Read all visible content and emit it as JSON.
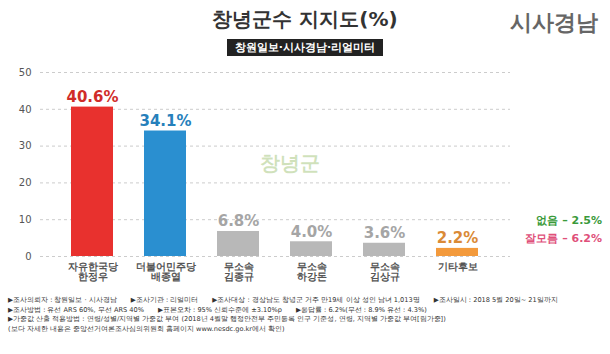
{
  "chart_data": {
    "type": "bar",
    "title": "창녕군수 지지도(%)",
    "subtitle": "창원일보·시사경남·리얼미터",
    "logo": "시사경남",
    "watermark": "창녕군",
    "categories": [
      "자유한국당\n한정우",
      "더불어민주당\n배종열",
      "무소속\n김종규",
      "무소속\n하강돈",
      "무소속\n김상규",
      "기타후보"
    ],
    "values": [
      40.6,
      34.1,
      6.8,
      4.0,
      3.6,
      2.2
    ],
    "value_labels": [
      "40.6%",
      "34.1%",
      "6.8%",
      "4.0%",
      "3.6%",
      "2.2%"
    ],
    "colors": [
      "#e8312e",
      "#2a8fd0",
      "#b8b8b8",
      "#b8b8b8",
      "#b8b8b8",
      "#f39a3c"
    ],
    "data_labels": true,
    "ylim": [
      0,
      50
    ],
    "yticks": [
      0,
      10,
      20,
      30,
      40,
      50
    ],
    "grid": true,
    "annotations": [
      {
        "text": "없음 – 2.5%",
        "color": "#3a9a3a"
      },
      {
        "text": "잘모름 – 6.2%",
        "color": "#e0507a"
      }
    ],
    "notes": [
      [
        "▶조사의뢰자 : 창원일보 · 시사경남",
        "▶조사기관 : 리얼미터",
        "▶조사대상 : 경상남도 창녕군 거주 만19세 이상 성인 남녀 1,013명",
        "▶조사일시 : 2018 5월 20일~ 21일까지"
      ],
      [
        "▶조사방법 : 유선 ARS 60%, 무선 ARS 40%",
        "▶표본오차 : 95% 신뢰수준에 ±3.10%p",
        "▶응답률 : 6.2%(무선 : 8.9% 유선 : 4.3%)"
      ],
      [
        "▶가중값 산출 적용방법 : 연령/성별/지역별 가중값 부여 (2018년 4월말 행정안전부 주민등록 인구 기준성, 연령, 지역별 가중값 부여[림가중])"
      ],
      [
        "(보다 자세한 내용은 중앙선거여론조사심의위원회 홈페이지 www.nesdc.go.kr에서 확인)"
      ]
    ]
  }
}
